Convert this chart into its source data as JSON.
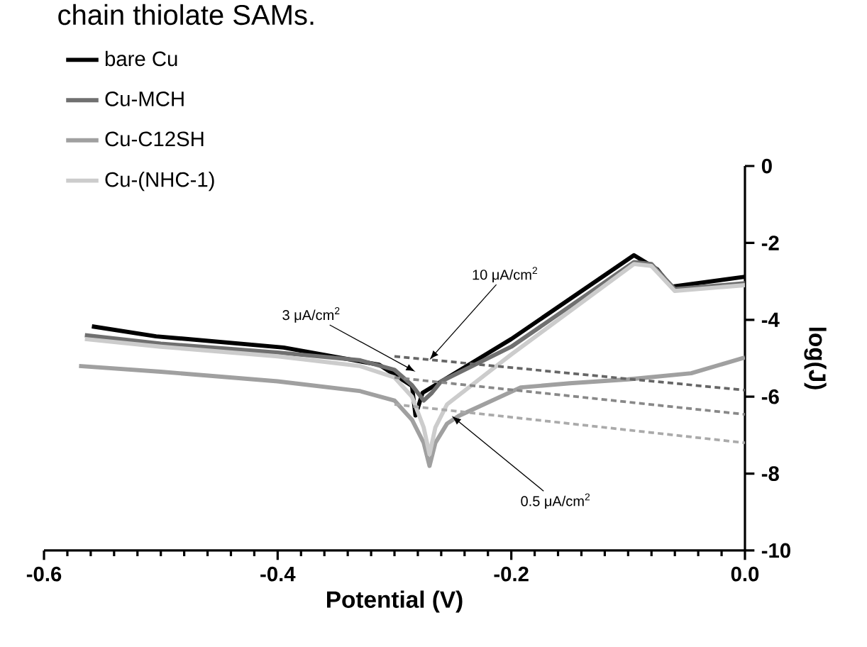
{
  "chart_data": {
    "type": "line",
    "title": "chain thiolate SAMs.",
    "xlabel": "Potential (V)",
    "ylabel": "log(J)",
    "xlim": [
      -0.6,
      0.0
    ],
    "ylim": [
      -10,
      0
    ],
    "xticks": [
      {
        "value": -0.6,
        "label": "-0.6"
      },
      {
        "value": -0.4,
        "label": "-0.4"
      },
      {
        "value": -0.2,
        "label": "-0.2"
      },
      {
        "value": 0.0,
        "label": "0.0"
      }
    ],
    "yticks": [
      -10,
      -8,
      -6,
      -4,
      -2,
      0
    ],
    "legend": "top left",
    "series": [
      {
        "name": "bare Cu",
        "color": "#000000",
        "x": [
          -0.559,
          -0.504,
          -0.395,
          -0.313,
          -0.285,
          -0.282,
          -0.276,
          -0.2,
          -0.095,
          -0.075,
          -0.063,
          0.0
        ],
        "values": [
          -4.17,
          -4.43,
          -4.72,
          -5.17,
          -5.72,
          -6.49,
          -5.9,
          -4.5,
          -2.32,
          -2.69,
          -3.14,
          -2.88
        ]
      },
      {
        "name": "Cu-MCH",
        "color": "#707070",
        "x": [
          -0.565,
          -0.5,
          -0.4,
          -0.33,
          -0.3,
          -0.285,
          -0.275,
          -0.268,
          -0.26,
          -0.2,
          -0.095,
          -0.08,
          -0.06,
          0.0
        ],
        "values": [
          -4.4,
          -4.62,
          -4.85,
          -5.05,
          -5.3,
          -5.7,
          -6.1,
          -5.9,
          -5.6,
          -4.7,
          -2.5,
          -2.55,
          -3.2,
          -3.05
        ]
      },
      {
        "name": "Cu-C12SH",
        "color": "#a0a0a0",
        "x": [
          -0.57,
          -0.5,
          -0.4,
          -0.33,
          -0.3,
          -0.285,
          -0.275,
          -0.27,
          -0.265,
          -0.255,
          -0.245,
          -0.192,
          -0.15,
          -0.1,
          -0.046,
          0.0
        ],
        "values": [
          -5.2,
          -5.35,
          -5.6,
          -5.85,
          -6.1,
          -6.6,
          -7.2,
          -7.8,
          -7.2,
          -6.7,
          -6.5,
          -5.76,
          -5.65,
          -5.55,
          -5.39,
          -4.98
        ]
      },
      {
        "name": "Cu-(NHC-1)",
        "color": "#cccccc",
        "x": [
          -0.565,
          -0.5,
          -0.4,
          -0.33,
          -0.3,
          -0.285,
          -0.275,
          -0.27,
          -0.265,
          -0.255,
          -0.2,
          -0.095,
          -0.08,
          -0.06,
          0.0
        ],
        "values": [
          -4.5,
          -4.7,
          -4.95,
          -5.2,
          -5.5,
          -6.0,
          -6.8,
          -7.5,
          -6.8,
          -6.2,
          -4.9,
          -2.55,
          -2.6,
          -3.25,
          -3.1
        ]
      },
      {
        "color": "#666666",
        "line_style": "dashed",
        "x": [
          -0.3,
          0.0
        ],
        "values": [
          -4.95,
          -5.83
        ]
      },
      {
        "color": "#888888",
        "line_style": "dashed",
        "x": [
          -0.3,
          0.0
        ],
        "values": [
          -5.5,
          -6.46
        ]
      },
      {
        "color": "#aaaaaa",
        "line_style": "dashed",
        "x": [
          -0.3,
          0.0
        ],
        "values": [
          -6.2,
          -7.2
        ]
      }
    ],
    "annotations": [
      {
        "text": "3 μA/cm$^{2}$",
        "x": -0.282,
        "y": -5.35
      },
      {
        "text": "10 μA/cm$^{2}$",
        "x": -0.27,
        "y": -5.04
      },
      {
        "text": "0.5 μA/cm$^{2}$",
        "x": -0.251,
        "y": -6.5
      }
    ]
  }
}
